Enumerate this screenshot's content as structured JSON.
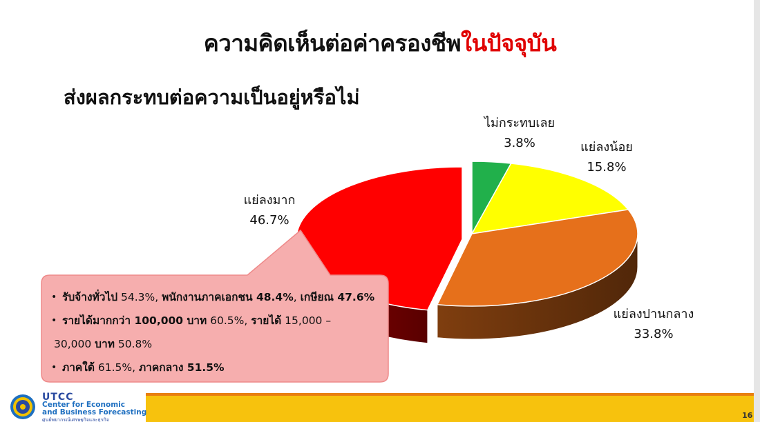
{
  "header": {
    "title_main": "ความคิดเห็นต่อค่าครองชีพ",
    "title_highlight": "ในปัจจุบัน",
    "subtitle": "ส่งผลกระทบต่อความเป็นอยู่หรือไม่"
  },
  "chart_data": {
    "type": "pie",
    "title": "ส่งผลกระทบต่อความเป็นอยู่หรือไม่",
    "categories": [
      "ไม่กระทบเลย",
      "แย่ลงน้อย",
      "แย่ลงปานกลาง",
      "แย่ลงมาก"
    ],
    "values": [
      3.8,
      15.8,
      33.8,
      46.7
    ],
    "value_labels": [
      "3.8%",
      "15.8%",
      "33.8%",
      "46.7%"
    ],
    "colors": [
      "#21b04b",
      "#ffff00",
      "#e6701b",
      "#ff0000"
    ],
    "style": "3d-exploded"
  },
  "callout": {
    "items": [
      {
        "b1": "รับจ้างทั่วไป",
        "t1": " 54.3%, ",
        "b2": "พนักงานภาคเอกชน 48.4%",
        "t2": ", ",
        "b3": "เกษียณ 47.6%"
      },
      {
        "b1": "รายได้มากกว่า 100,000 บาท",
        "t1": " 60.5%, ",
        "b2": "รายได้",
        "t2": " 15,000 –",
        "b3": ""
      },
      {
        "b1": "",
        "t1": "30,000 ",
        "b2": "บาท",
        "t2": " 50.8%",
        "b3": ""
      },
      {
        "b1": "ภาคใต้",
        "t1": " 61.5%, ",
        "b2": "ภาคกลาง 51.5%",
        "t2": "",
        "b3": ""
      }
    ]
  },
  "footer": {
    "logo_name": "UTCC",
    "logo_sub1": "Center for Economic",
    "logo_sub2": "and Business Forecasting",
    "logo_thai": "ศูนย์พยากรณ์เศรษฐกิจและธุรกิจ",
    "page_number": "16"
  }
}
